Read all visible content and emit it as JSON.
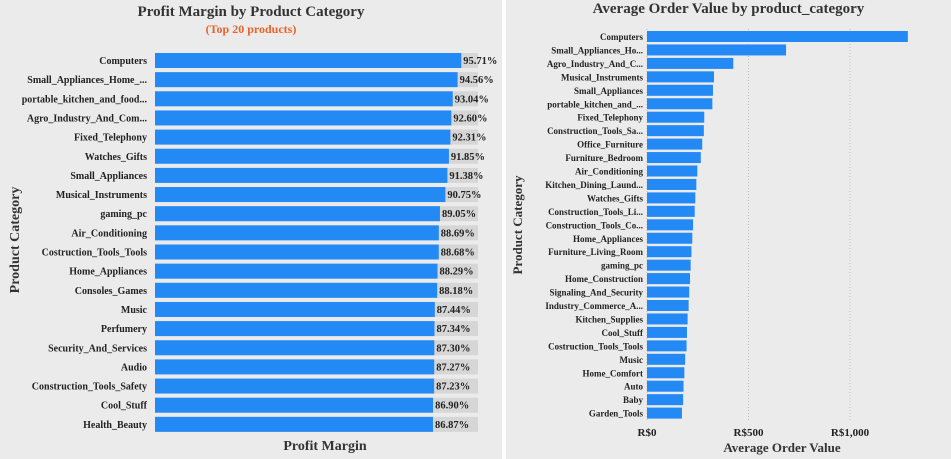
{
  "chart_data": [
    {
      "type": "bar",
      "orientation": "horizontal",
      "title": "Profit Margin by Product Category",
      "subtitle": "(Top 20 products)",
      "xlabel": "Profit Margin",
      "ylabel": "Product Category",
      "xlim": [
        0,
        100
      ],
      "bar_color": "#2389f5",
      "background_bar_color": "#d6d6d6",
      "categories": [
        "Computers",
        "Small_Appliances_Home_...",
        "portable_kitchen_and_food...",
        "Agro_Industry_And_Com...",
        "Fixed_Telephony",
        "Watches_Gifts",
        "Small_Appliances",
        "Musical_Instruments",
        "gaming_pc",
        "Air_Conditioning",
        "Costruction_Tools_Tools",
        "Home_Appliances",
        "Consoles_Games",
        "Music",
        "Perfumery",
        "Security_And_Services",
        "Audio",
        "Construction_Tools_Safety",
        "Cool_Stuff",
        "Health_Beauty"
      ],
      "values": [
        95.71,
        94.56,
        93.04,
        92.6,
        92.31,
        91.85,
        91.38,
        90.75,
        89.05,
        88.69,
        88.68,
        88.29,
        88.18,
        87.44,
        87.34,
        87.3,
        87.27,
        87.23,
        86.9,
        86.87
      ],
      "value_labels": [
        "95.71%",
        "94.56%",
        "93.04%",
        "92.60%",
        "92.31%",
        "91.85%",
        "91.38%",
        "90.75%",
        "89.05%",
        "88.69%",
        "88.68%",
        "88.29%",
        "88.18%",
        "87.44%",
        "87.34%",
        "87.30%",
        "87.27%",
        "87.23%",
        "86.90%",
        "86.87%"
      ]
    },
    {
      "type": "bar",
      "orientation": "horizontal",
      "title": "Average Order Value by product_category",
      "xlabel": "Average Order Value",
      "ylabel": "Product Category",
      "xlim": [
        0,
        1300
      ],
      "xticks": [
        0,
        500,
        1000
      ],
      "xtick_labels": [
        "R$0",
        "R$500",
        "R$1,000"
      ],
      "grid": "vertical dotted",
      "bar_color": "#2389f5",
      "categories": [
        "Computers",
        "Small_Appliances_Ho...",
        "Agro_Industry_And_C...",
        "Musical_Instruments",
        "Small_Appliances",
        "portable_kitchen_and_...",
        "Fixed_Telephony",
        "Construction_Tools_Sa...",
        "Office_Furniture",
        "Furniture_Bedroom",
        "Air_Conditioning",
        "Kitchen_Dining_Laund...",
        "Watches_Gifts",
        "Construction_Tools_Li...",
        "Construction_Tools_Co...",
        "Home_Appliances",
        "Furniture_Living_Room",
        "gaming_pc",
        "Home_Construction",
        "Signaling_And_Security",
        "Industry_Commerce_A...",
        "Kitchen_Supplies",
        "Cool_Stuff",
        "Costruction_Tools_Tools",
        "Music",
        "Home_Comfort",
        "Auto",
        "Baby",
        "Garden_Tools"
      ],
      "values": [
        1285,
        685,
        425,
        330,
        325,
        322,
        282,
        280,
        272,
        265,
        248,
        243,
        238,
        235,
        227,
        223,
        219,
        215,
        212,
        208,
        205,
        200,
        197,
        195,
        188,
        184,
        180,
        178,
        172
      ]
    }
  ]
}
